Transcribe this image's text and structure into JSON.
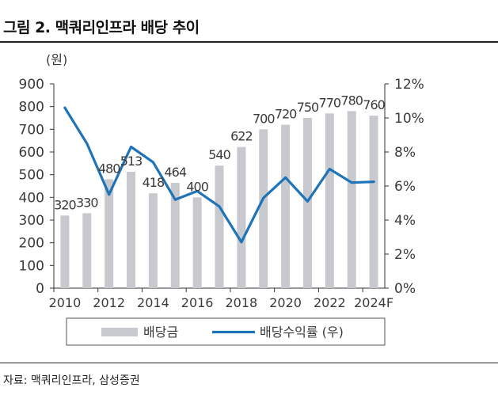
{
  "figure": {
    "title": "그림 2. 맥쿼리인프라 배당 추이",
    "source": "자료: 맥쿼리인프라, 삼성증권"
  },
  "colors": {
    "bar": "#c8c9ce",
    "line": "#1f73b7",
    "axis": "#333333",
    "text": "#3a3a3a"
  },
  "chart_data": {
    "type": "bar",
    "categories": [
      "2010",
      "2011",
      "2012",
      "2013",
      "2014",
      "2015",
      "2016",
      "2017",
      "2018",
      "2019",
      "2020",
      "2021",
      "2022",
      "2023",
      "2024F"
    ],
    "x_tick_labels": [
      "2010",
      "2012",
      "2014",
      "2016",
      "2018",
      "2020",
      "2022",
      "2024F"
    ],
    "y_left_unit": "(원)",
    "y_left_ticks": [
      "0",
      "100",
      "200",
      "300",
      "400",
      "500",
      "600",
      "700",
      "800",
      "900"
    ],
    "y_left_lim": [
      0,
      900
    ],
    "y_right_ticks": [
      "0%",
      "2%",
      "4%",
      "6%",
      "8%",
      "10%",
      "12%"
    ],
    "y_right_lim": [
      0,
      12
    ],
    "series": [
      {
        "name": "배당금",
        "kind": "bar",
        "axis": "left",
        "values": [
          320,
          330,
          480,
          513,
          418,
          464,
          400,
          540,
          622,
          700,
          720,
          750,
          770,
          780,
          760
        ],
        "labels": [
          "320",
          "330",
          "480",
          "513",
          "418",
          "464",
          "400",
          "540",
          "622",
          "700",
          "720",
          "750",
          "770",
          "780",
          "760"
        ]
      },
      {
        "name": "배당수익률 (우)",
        "kind": "line",
        "axis": "right",
        "values": [
          10.6,
          8.5,
          5.5,
          8.3,
          7.4,
          5.2,
          5.7,
          4.8,
          2.7,
          5.3,
          6.5,
          5.1,
          7.0,
          6.2,
          6.25
        ]
      }
    ],
    "legend_position": "bottom",
    "grid": false
  }
}
